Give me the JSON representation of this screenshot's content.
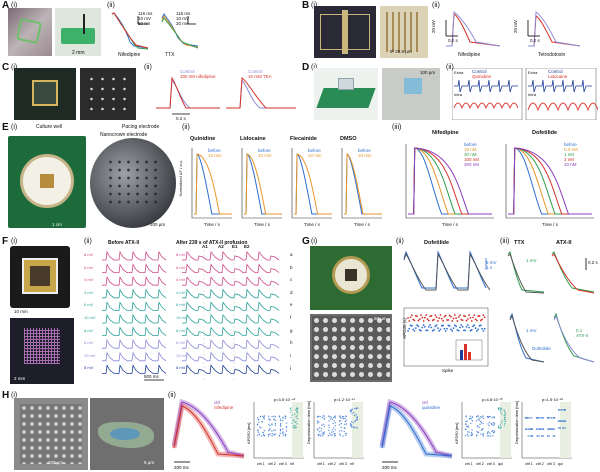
{
  "panels": {
    "A": {
      "letter": "A",
      "sub": [
        "(i)",
        "(ii)"
      ],
      "scalebar": "2 mm",
      "traces": [
        {
          "label": "Nifedipine",
          "v_scale": "10 mV",
          "t_scale": "50 ms",
          "top": "116 ms"
        },
        {
          "label": "TTX",
          "v_scale": "10 mV",
          "t_scale": "20 ms",
          "top": "116 ms"
        }
      ]
    },
    "B": {
      "letter": "B",
      "sub": [
        "(i)",
        "(ii)"
      ],
      "chip_label": "200 µm",
      "array_label": "5 µm",
      "dims": "5² 26.9 µm",
      "scales": [
        "20 mV",
        "0.2 s",
        "20 mV",
        "0.2 s"
      ],
      "traces": [
        "Nifedipine",
        "Tetrodotoxin"
      ]
    },
    "C": {
      "letter": "C",
      "sub": [
        "(i)",
        "(ii)"
      ],
      "legend_left": [
        "Control",
        "100 nM nifedipine"
      ],
      "legend_right": [
        "Control",
        "10 mM TEA"
      ],
      "t_scale": "0.2 s"
    },
    "D": {
      "letter": "D",
      "sub": [
        "(i)",
        "(ii)"
      ],
      "scalebar": "100 µm",
      "legend_left": [
        "Control",
        "Quinidine"
      ],
      "legend_right": [
        "Control",
        "Lidocaine"
      ],
      "tags": [
        "Extra",
        "Intra",
        "Extra",
        "Intra"
      ]
    },
    "E": {
      "letter": "E",
      "sub": [
        "(i)",
        "(ii)",
        "(iii)"
      ],
      "culture": "Culture well",
      "nano": "Nanocrown electrode",
      "pacing": "Pacing electrode",
      "scale_left": "1 cm",
      "scale_right": "200 µm",
      "ylabel": "Normalized ΔF / a.u.",
      "xlabel": "Time / s",
      "small": [
        {
          "title": "Quinidine",
          "legend": [
            "before",
            "10 min"
          ]
        },
        {
          "title": "Lidocaine",
          "legend": [
            "before",
            "10 min"
          ]
        },
        {
          "title": "Flecainide",
          "legend": [
            "before",
            "10 min"
          ]
        },
        {
          "title": "DMSO",
          "legend": [
            "before",
            "10 min"
          ]
        }
      ],
      "large": [
        {
          "title": "Nifedipine",
          "legend": [
            "before",
            "10 nM",
            "30 nM",
            "100 nM",
            "300 nM"
          ]
        },
        {
          "title": "Dofetilide",
          "legend": [
            "before",
            "0.3 nM",
            "1 nM",
            "3 nM",
            "10 nM"
          ]
        }
      ]
    },
    "F": {
      "letter": "F",
      "sub": [
        "(i)",
        "(ii)"
      ],
      "scale1": "10 mm",
      "scale2": "2 mm",
      "before": "Before ATX-II",
      "after": "After 239 s of ATX-II profusion",
      "markers": [
        "A1",
        "A2",
        "E1",
        "E2"
      ],
      "rows": [
        "8 mV",
        "6 mV",
        "4 mV",
        "4 mV",
        "6 mV",
        "10 mV",
        "8 mV",
        "6 mV",
        "10 mV",
        "8 mV"
      ],
      "row_tags": [
        "a",
        "b",
        "c",
        "d",
        "e",
        "f",
        "g",
        "h",
        "i",
        "j"
      ],
      "t_scale": "500 ms"
    },
    "G": {
      "letter": "G",
      "sub": [
        "(i)",
        "(ii)",
        "(iii)"
      ],
      "scale": "50 µm",
      "dofetilide": "Dofetilide",
      "ttx": "TTX",
      "atx": "ATX-II",
      "scales": [
        "5 mV",
        "1 s",
        "1 mV",
        "1 s",
        "0.2 s"
      ],
      "apd_label": "APD30 (s)",
      "spike_label": "Spike",
      "atx_legend": [
        "0.1",
        "ATX-II"
      ]
    },
    "H": {
      "letter": "H",
      "sub": [
        "(i)",
        "(ii)"
      ],
      "scale_left": "200 µm",
      "scale_right": "5 µm",
      "legend_a": [
        "ctrl",
        "nifedipine"
      ],
      "legend_b": [
        "ctrl",
        "quinidine"
      ],
      "p_values": [
        "p=3.5·10⁻⁴⁶",
        "p=1.2·10⁻¹⁴",
        "p=4.8·10⁻³⁰",
        "p=1.5·10⁻²⁸"
      ],
      "yl1": "APD50 [ms]",
      "yl2": "Depolarization time [ms]",
      "yl3": "APD90 [ms]",
      "yl4": "Depolarization time [ms]",
      "xcats": [
        "ctrl 1",
        "ctrl 2",
        "ctrl 3",
        "nif"
      ],
      "xcats2": [
        "ctrl 1",
        "ctrl 2",
        "ctrl 3",
        "qui"
      ],
      "t_scale": "200 ms"
    }
  },
  "colors": {
    "blue": "#2e6fd0",
    "red": "#d6322a",
    "green": "#2f9c4e",
    "orange": "#e8962a",
    "purple": "#8b3fbf",
    "pink": "#d04a8a",
    "teal": "#2aa39b",
    "darkblue": "#1d3f9a"
  }
}
